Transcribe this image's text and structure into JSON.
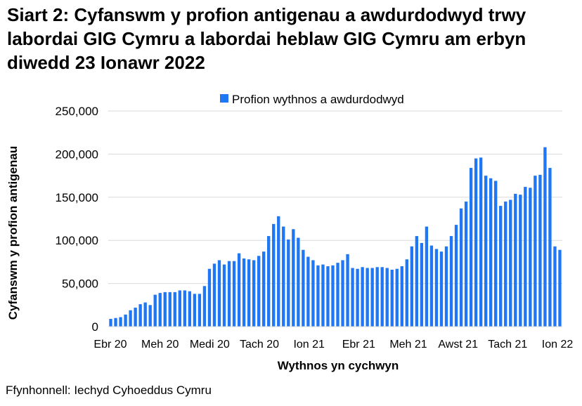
{
  "chart_data": {
    "type": "bar",
    "title": "Siart 2: Cyfanswm y profion antigenau a awdurdodwyd trwy labordai GIG Cymru a labordai heblaw GIG Cymru am erbyn diwedd 23 Ionawr 2022",
    "xlabel": "Wythnos yn cychwyn",
    "ylabel": "Cyfanswm y profion antigenau",
    "ylim": [
      0,
      250000
    ],
    "yticks": [
      "0",
      "50,000",
      "100,000",
      "150,000",
      "200,000",
      "250,000"
    ],
    "xtick_labels": [
      "Ebr 20",
      "Meh 20",
      "Medi 20",
      "Tach 20",
      "Ion 21",
      "Ebr 21",
      "Meh 21",
      "Awst 21",
      "Tach 21",
      "Ion 22"
    ],
    "grid": true,
    "legend_position": "top",
    "series": [
      {
        "name": "Profion wythnos a awdurdodwyd",
        "color": "#1f77f4",
        "values": [
          9000,
          10000,
          11000,
          14000,
          19000,
          22000,
          26000,
          28000,
          25000,
          37000,
          39000,
          40000,
          40000,
          40000,
          42000,
          42000,
          41000,
          38000,
          38000,
          47000,
          67000,
          73000,
          77000,
          72000,
          76000,
          76000,
          85000,
          79000,
          78000,
          77000,
          82000,
          87000,
          105000,
          119000,
          128000,
          116000,
          101000,
          113000,
          103000,
          89000,
          81000,
          77000,
          71000,
          72000,
          70000,
          71000,
          74000,
          77000,
          84000,
          68000,
          67000,
          69000,
          68000,
          68000,
          69000,
          69000,
          68000,
          66000,
          67000,
          70000,
          78000,
          93000,
          105000,
          97000,
          116000,
          94000,
          90000,
          87000,
          93000,
          105000,
          118000,
          137000,
          145000,
          184000,
          195000,
          196000,
          175000,
          172000,
          169000,
          140000,
          145000,
          147000,
          154000,
          153000,
          162000,
          161000,
          175000,
          176000,
          208000,
          184000,
          93000,
          89000
        ]
      }
    ]
  },
  "source_note": "Ffynhonnell: Iechyd Cyhoeddus Cymru"
}
